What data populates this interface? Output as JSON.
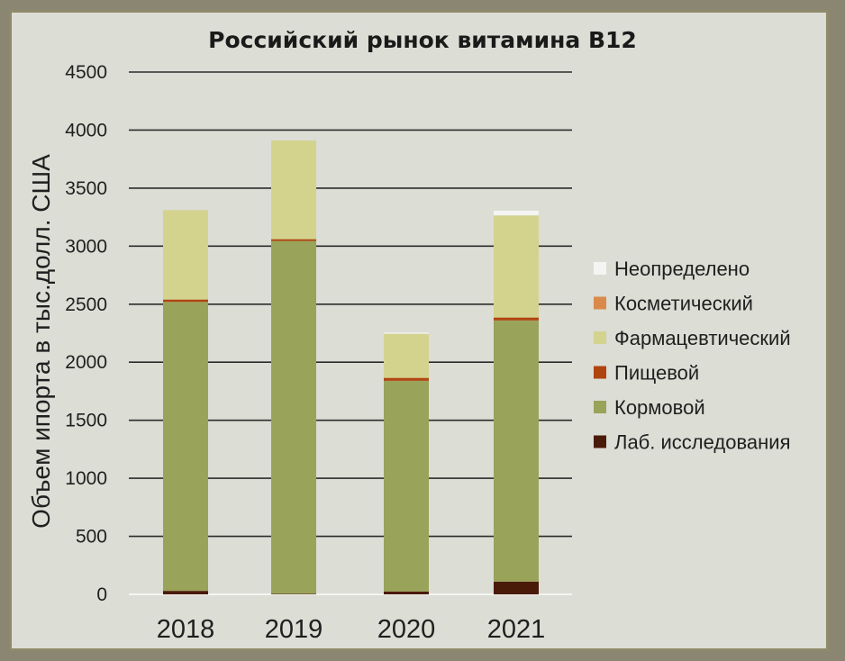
{
  "chart_data": {
    "type": "bar",
    "stacked": true,
    "title": "Российский рынок витамина B12",
    "ylabel": "Объем ипорта в тыс.долл. США",
    "xlabel": "",
    "ylim": [
      0,
      4500
    ],
    "yticks": [
      0,
      500,
      1000,
      1500,
      2000,
      2500,
      3000,
      3500,
      4000,
      4500
    ],
    "grid": true,
    "legend_position": "right",
    "categories": [
      "2018",
      "2019",
      "2020",
      "2021"
    ],
    "series": [
      {
        "name": "Лаб. исследования",
        "color": "#4a1a08",
        "values": [
          30,
          5,
          25,
          110
        ]
      },
      {
        "name": "Кормовой",
        "color": "#9aa35a",
        "values": [
          2490,
          3040,
          1815,
          2250
        ]
      },
      {
        "name": "Пищевой",
        "color": "#b0440f",
        "values": [
          20,
          15,
          25,
          25
        ]
      },
      {
        "name": "Фармацевтический",
        "color": "#d3d38e",
        "values": [
          770,
          850,
          380,
          880
        ]
      },
      {
        "name": "Косметический",
        "color": "#d98a4a",
        "values": [
          0,
          0,
          0,
          0
        ]
      },
      {
        "name": "Неопределено",
        "color": "#f4f4f2",
        "values": [
          0,
          0,
          10,
          40
        ]
      }
    ],
    "legend_order": [
      "Неопределено",
      "Косметический",
      "Фармацевтический",
      "Пищевой",
      "Кормовой",
      "Лаб. исследования"
    ]
  }
}
